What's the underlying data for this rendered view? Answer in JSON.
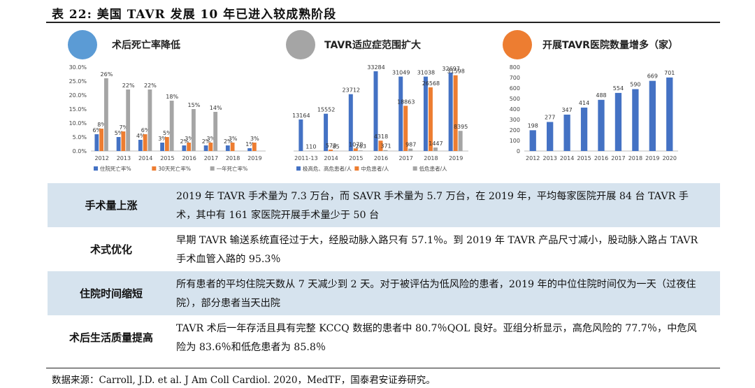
{
  "title": "表 22:  美国 TAVR 发展 10 年已进入较成熟阶段",
  "chart_data": [
    {
      "type": "bar",
      "title": "术后死亡率降低",
      "categories": [
        "2012",
        "2013",
        "2014",
        "2015",
        "2016",
        "2017",
        "2018",
        "2019"
      ],
      "series": [
        {
          "name": "住院死亡率%",
          "values": [
            6,
            5,
            4,
            3,
            2,
            2,
            2,
            1
          ],
          "labels": [
            "6%",
            "5%",
            "4%",
            "3%",
            "2%",
            "2%",
            "2%",
            "1%"
          ]
        },
        {
          "name": "30天死亡率%",
          "values": [
            8,
            7,
            6,
            5,
            3,
            3,
            3,
            3
          ],
          "labels": [
            "8%",
            "7%",
            "6%",
            "5%",
            "3%",
            "3%",
            "3%",
            "3%"
          ]
        },
        {
          "name": "一年死亡率%",
          "values": [
            26,
            22,
            22,
            18,
            15,
            14,
            null,
            null
          ],
          "labels": [
            "26%",
            "22%",
            "22%",
            "18%",
            "15%",
            "14%",
            "",
            ""
          ]
        }
      ],
      "ylim": [
        0,
        30
      ],
      "yticks": [
        "0.0%",
        "5.0%",
        "10.0%",
        "15.0%",
        "20.0%",
        "25.0%",
        "30.0%"
      ],
      "colors": [
        "#4472c4",
        "#ed7d31",
        "#a5a5a5"
      ],
      "icon_color": "#5b9bd5"
    },
    {
      "type": "bar",
      "title": "TAVR适应症范围扩大",
      "categories": [
        "2011-13",
        "2014",
        "2015",
        "2016",
        "2017",
        "2018",
        "2019"
      ],
      "series": [
        {
          "name": "极高危、高危患者/人",
          "values": [
            13164,
            15552,
            23712,
            33284,
            31049,
            31038,
            32697
          ]
        },
        {
          "name": "中危患者/人",
          "values": [
            null,
            573,
            1078,
            4318,
            18863,
            26568,
            31598
          ]
        },
        {
          "name": "低危患者/人",
          "values": [
            110,
            85,
            263,
            371,
            987,
            1447,
            8395
          ]
        }
      ],
      "ylim": [
        0,
        35000
      ],
      "colors": [
        "#4472c4",
        "#ed7d31",
        "#a5a5a5"
      ],
      "icon_color": "#a5a5a5"
    },
    {
      "type": "bar",
      "title": "开展TAVR医院数量增多（家）",
      "categories": [
        "2012",
        "2013",
        "2014",
        "2015",
        "2016",
        "2017",
        "2018",
        "2019",
        "2020"
      ],
      "values": [
        198,
        277,
        347,
        414,
        488,
        554,
        590,
        669,
        701
      ],
      "ylim": [
        0,
        800
      ],
      "yticks": [
        "0",
        "100",
        "200",
        "300",
        "400",
        "500",
        "600",
        "700",
        "800"
      ],
      "colors": [
        "#4472c4"
      ],
      "icon_color": "#ed7d31"
    }
  ],
  "table": [
    {
      "key": "手术量上涨",
      "text": "2019 年 TAVR 手术量为 7.3 万台，而 SAVR 手术量为 5.7 万台，在 2019 年，平均每家医院开展 84 台 TAVR 手术，其中有 161 家医院开展手术量少于 50 台"
    },
    {
      "key": "术式优化",
      "text": "早期 TAVR 输送系统直径过于大，经股动脉入路只有 57.1％。到 2019 年 TAVR 产品尺寸减小，股动脉入路占 TAVR 手术血管入路的 95.3％"
    },
    {
      "key": "住院时间缩短",
      "text": "所有患者的平均住院天数从 7 天减少到 2 天。对于被评估为低风险的患者，2019 年的中位住院时间仅为一天（过夜住院），部分患者当天出院"
    },
    {
      "key": "术后生活质量提高",
      "text": "TAVR 术后一年存活且具有完整 KCCQ 数据的患者中 80.7％QOL 良好。亚组分析显示，高危风险的 77.7％，中危风险为 83.6％和低危患者为 85.8％"
    }
  ],
  "source": "数据来源：Carroll, J.D. et al. J Am Coll Cardiol. 2020，MedTF，国泰君安证券研究。"
}
